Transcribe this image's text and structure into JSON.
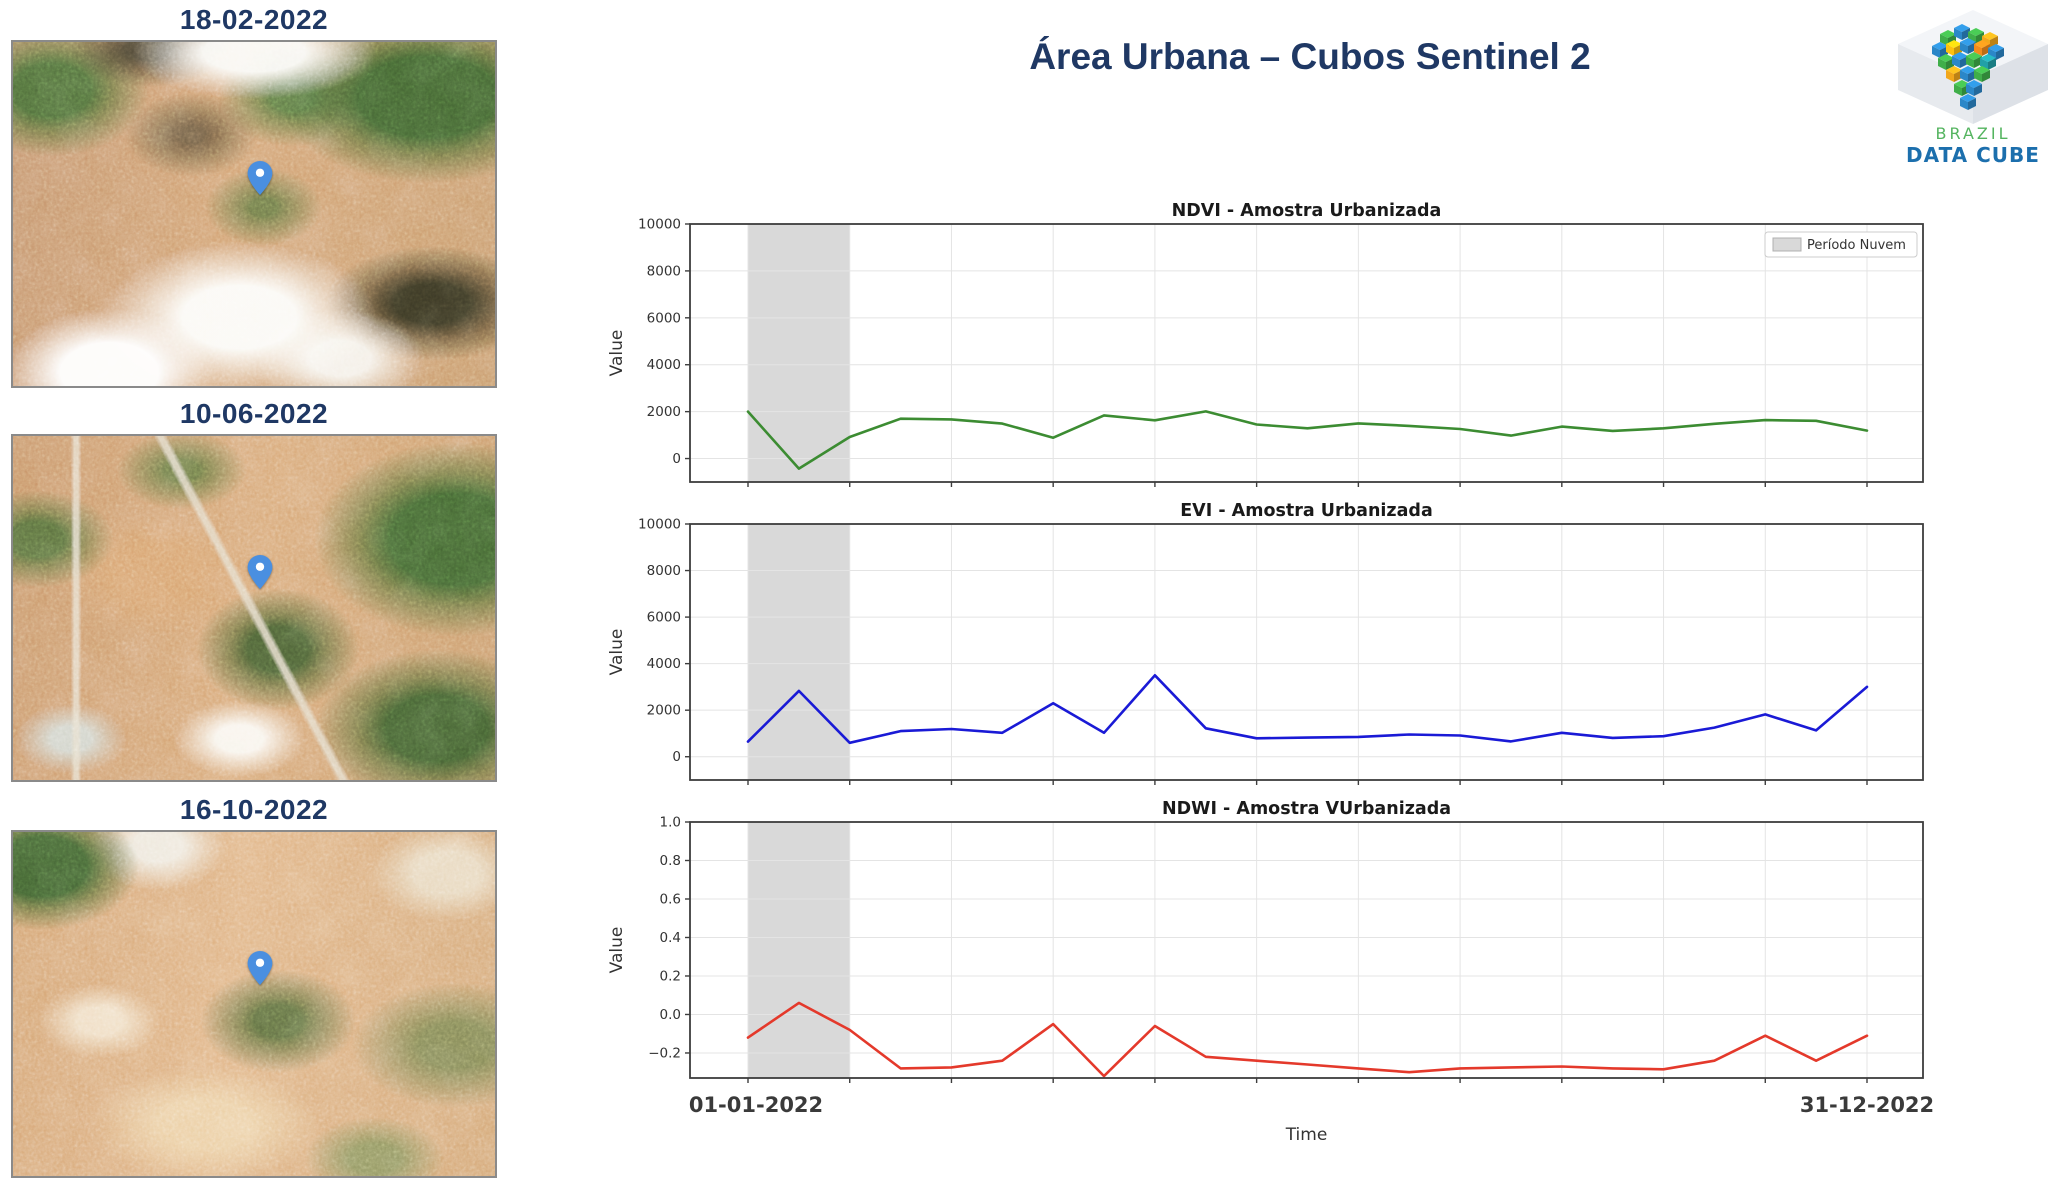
{
  "header": {
    "title": "Área Urbana – Cubos Sentinel 2"
  },
  "logo": {
    "brazil": "BRAZIL",
    "data_cube": "DATA CUBE",
    "brazil_color": "#54b45f",
    "data_cube_color": "#1c6fad"
  },
  "satellite_panels": [
    {
      "date": "18-02-2022"
    },
    {
      "date": "10-06-2022"
    },
    {
      "date": "16-10-2022"
    }
  ],
  "chart_axis": {
    "x_first_label": "01-01-2022",
    "x_last_label": "31-12-2022",
    "xlabel": "Time",
    "n_xticks": 12,
    "cloud_band_indices": [
      0,
      2
    ],
    "cloud_band_color": "#d9d9d9",
    "grid_color": "#e4e4e4",
    "spine_color": "#3d3d3d",
    "tick_label_color": "#333333",
    "x_label_color": "#3a3a3a"
  },
  "chart_data": [
    {
      "type": "line",
      "title": "NDVI - Amostra Urbanizada",
      "series_name": "NDVI",
      "line_color": "#3c8c32",
      "ylabel": "Value",
      "ylim": [
        -1000,
        10000
      ],
      "yticks": [
        {
          "v": 0,
          "label": "0"
        },
        {
          "v": 2000,
          "label": "2000"
        },
        {
          "v": 4000,
          "label": "4000"
        },
        {
          "v": 6000,
          "label": "6000"
        },
        {
          "v": 8000,
          "label": "8000"
        },
        {
          "v": 10000,
          "label": "10000"
        }
      ],
      "legend": [
        {
          "label": "Período Nuvem",
          "swatch_color": "#d9d9d9"
        }
      ],
      "values": [
        2000,
        -430,
        920,
        1700,
        1670,
        1490,
        890,
        1840,
        1630,
        2010,
        1450,
        1290,
        1500,
        1390,
        1260,
        980,
        1360,
        1180,
        1290,
        1480,
        1640,
        1610,
        1190
      ]
    },
    {
      "type": "line",
      "title": "EVI - Amostra Urbanizada",
      "series_name": "EVI",
      "line_color": "#1a1ad6",
      "ylabel": "Value",
      "ylim": [
        -1000,
        10000
      ],
      "yticks": [
        {
          "v": 0,
          "label": "0"
        },
        {
          "v": 2000,
          "label": "2000"
        },
        {
          "v": 4000,
          "label": "4000"
        },
        {
          "v": 6000,
          "label": "6000"
        },
        {
          "v": 8000,
          "label": "8000"
        },
        {
          "v": 10000,
          "label": "10000"
        }
      ],
      "legend": [],
      "values": [
        650,
        2830,
        600,
        1100,
        1190,
        1030,
        2300,
        1030,
        3500,
        1220,
        790,
        820,
        850,
        955,
        910,
        660,
        1030,
        810,
        880,
        1250,
        1820,
        1130,
        3000
      ]
    },
    {
      "type": "line",
      "title": "NDWI - Amostra VUrbanizada",
      "series_name": "NDWI",
      "line_color": "#e4392b",
      "ylabel": "Value",
      "ylim": [
        -0.33,
        1.0
      ],
      "yticks": [
        {
          "v": -0.2,
          "label": "−0.2"
        },
        {
          "v": 0.0,
          "label": "0.0"
        },
        {
          "v": 0.2,
          "label": "0.2"
        },
        {
          "v": 0.4,
          "label": "0.4"
        },
        {
          "v": 0.6,
          "label": "0.6"
        },
        {
          "v": 0.8,
          "label": "0.8"
        },
        {
          "v": 1.0,
          "label": "1.0"
        }
      ],
      "legend": [],
      "values": [
        -0.12,
        0.06,
        -0.08,
        -0.28,
        -0.275,
        -0.24,
        -0.05,
        -0.32,
        -0.06,
        -0.22,
        -0.24,
        -0.26,
        -0.28,
        -0.3,
        -0.28,
        -0.275,
        -0.27,
        -0.28,
        -0.285,
        -0.24,
        -0.11,
        -0.24,
        -0.11
      ]
    }
  ]
}
